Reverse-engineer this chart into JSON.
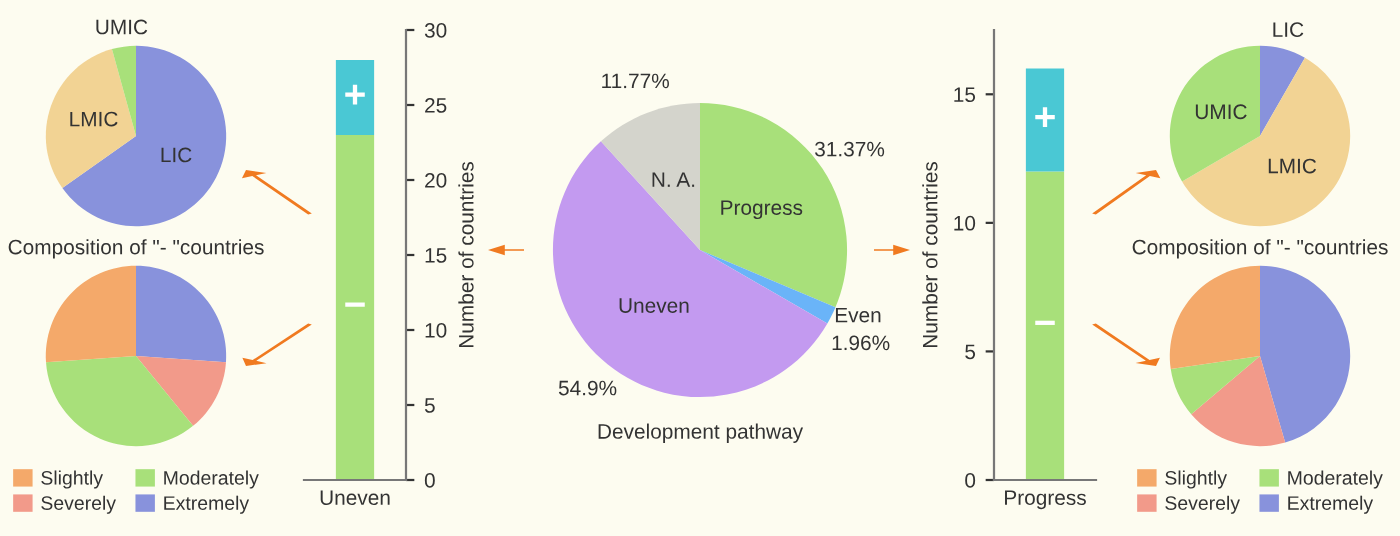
{
  "chart_data": [
    {
      "type": "pie",
      "categories": [
        "LIC",
        "LMIC",
        "UMIC"
      ],
      "values": [
        65.2,
        30.5,
        4.3
      ],
      "colors": [
        "#8892dc",
        "#f2d394",
        "#a8e07a"
      ]
    },
    {
      "type": "pie",
      "title": "Composition of \"- \"countries",
      "categories": [
        "Extremely",
        "Severely",
        "Moderately",
        "Slightly"
      ],
      "values": [
        26.1,
        13.0,
        34.8,
        26.1
      ],
      "colors": [
        "#8892dc",
        "#f29a8a",
        "#a8e07a",
        "#f4a96a"
      ],
      "legend": "bottom"
    },
    {
      "type": "bar",
      "categories": [
        "Uneven"
      ],
      "stacked": true,
      "series": [
        {
          "name": "−",
          "color": "#a8e07a",
          "values": [
            23
          ]
        },
        {
          "name": "+",
          "color": "#4ac8d4",
          "values": [
            5
          ]
        }
      ],
      "ylim": [
        0,
        30
      ],
      "yticks": [
        0,
        5,
        10,
        15,
        20,
        25,
        30
      ],
      "ylabel": "Number of countries"
    },
    {
      "type": "pie",
      "title": "Development pathway",
      "categories": [
        "Progress",
        "Even",
        "Uneven",
        "N. A."
      ],
      "values": [
        31.37,
        1.96,
        54.9,
        11.77
      ],
      "colors": [
        "#a8e07a",
        "#6ab4f8",
        "#c39af0",
        "#d4d4cc"
      ],
      "value_labels": [
        "31.37%",
        "1.96%",
        "54.9%",
        "11.77%"
      ]
    },
    {
      "type": "bar",
      "categories": [
        "Progress"
      ],
      "stacked": true,
      "series": [
        {
          "name": "−",
          "color": "#a8e07a",
          "values": [
            12
          ]
        },
        {
          "name": "+",
          "color": "#4ac8d4",
          "values": [
            4
          ]
        }
      ],
      "ylim": [
        0,
        17.5
      ],
      "yticks": [
        0,
        5,
        10,
        15
      ],
      "ylabel": "Number of countries"
    },
    {
      "type": "pie",
      "categories": [
        "LIC",
        "LMIC",
        "UMIC"
      ],
      "values": [
        8.3,
        58.3,
        33.4
      ],
      "colors": [
        "#8892dc",
        "#f2d394",
        "#a8e07a"
      ]
    },
    {
      "type": "pie",
      "title": "Composition of \"- \"countries",
      "categories": [
        "Extremely",
        "Severely",
        "Moderately",
        "Slightly"
      ],
      "values": [
        45.5,
        18.3,
        8.9,
        27.3
      ],
      "colors": [
        "#8892dc",
        "#f29a8a",
        "#a8e07a",
        "#f4a96a"
      ],
      "legend": "bottom"
    }
  ]
}
